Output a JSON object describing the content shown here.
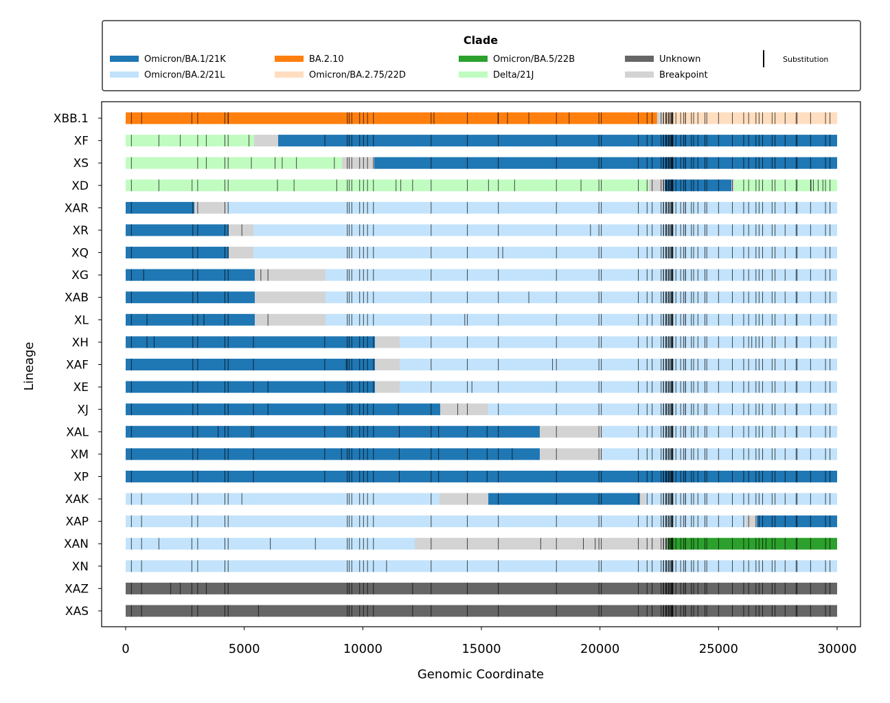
{
  "chart_data": {
    "type": "bar",
    "subtype": "horizontal-segmented",
    "xlabel": "Genomic Coordinate",
    "ylabel": "Lineage",
    "xlim": [
      -1000,
      31000
    ],
    "xticks": [
      0,
      5000,
      10000,
      15000,
      20000,
      25000,
      30000
    ],
    "grid": false,
    "legend": {
      "title": "Clade",
      "placement": "top",
      "entries": [
        {
          "name": "Omicron/BA.1/21K",
          "color": "#1f77b4"
        },
        {
          "name": "Omicron/BA.2/21L",
          "color": "#c2e3fb"
        },
        {
          "name": "BA.2.10",
          "color": "#ff7f0e"
        },
        {
          "name": "Omicron/BA.2.75/22D",
          "color": "#ffdec0"
        },
        {
          "name": "Omicron/BA.5/22B",
          "color": "#2ca02c"
        },
        {
          "name": "Delta/21J",
          "color": "#c0fcc0"
        },
        {
          "name": "Unknown",
          "color": "#666666"
        },
        {
          "name": "Breakpoint",
          "color": "#d3d3d3"
        }
      ],
      "substitution_label": "Substitution"
    },
    "common_substitutions": [
      241,
      3037,
      4184,
      4321,
      9344,
      9424,
      9534,
      9866,
      10029,
      10198,
      10447,
      12880,
      14408,
      15714,
      18163,
      19955,
      20055,
      21618,
      21987,
      22200,
      22578,
      22673,
      22686,
      22775,
      22786,
      22813,
      22882,
      22898,
      22942,
      22992,
      23013,
      23040,
      23055,
      23063,
      23075,
      23202,
      23403,
      23525,
      23599,
      23604,
      23854,
      23948,
      24130,
      24424,
      24503,
      25000,
      25584,
      26060,
      26270,
      26577,
      26709,
      26858,
      27259,
      27382,
      27807,
      28271,
      28311,
      28881,
      29510,
      29700
    ],
    "rows": [
      {
        "lineage": "XBB.1",
        "segments": [
          [
            0,
            22410,
            "BA.2.10"
          ],
          [
            22410,
            22650,
            "Breakpoint"
          ],
          [
            22650,
            30000,
            "Omicron/BA.2.75/22D"
          ]
        ],
        "extra": [
          670,
          2790,
          4321,
          13000,
          15700,
          16100,
          17000,
          18700
        ]
      },
      {
        "lineage": "XF",
        "segments": [
          [
            0,
            5415,
            "Delta/21J"
          ],
          [
            5415,
            6430,
            "Breakpoint"
          ],
          [
            6430,
            30000,
            "Omicron/BA.1/21K"
          ]
        ],
        "extra": [
          1400,
          2300,
          3400,
          5200,
          8400
        ]
      },
      {
        "lineage": "XS",
        "segments": [
          [
            0,
            9122,
            "Delta/21J"
          ],
          [
            9122,
            10484,
            "Breakpoint"
          ],
          [
            10484,
            30000,
            "Omicron/BA.1/21K"
          ]
        ],
        "extra": [
          3400,
          5300,
          6300,
          6600,
          7200,
          8800
        ]
      },
      {
        "lineage": "XD",
        "segments": [
          [
            0,
            22067,
            "Delta/21J"
          ],
          [
            22067,
            22733,
            "Breakpoint"
          ],
          [
            22733,
            25543,
            "Omicron/BA.1/21K"
          ],
          [
            25543,
            25659,
            "Breakpoint"
          ],
          [
            25659,
            30000,
            "Delta/21J"
          ]
        ],
        "extra": [
          1400,
          2800,
          6400,
          7100,
          8900,
          11400,
          11600,
          12100,
          15300,
          16400,
          19200,
          28900,
          29000,
          29200,
          29400
        ]
      },
      {
        "lineage": "XAR",
        "segments": [
          [
            0,
            2896,
            "Omicron/BA.1/21K"
          ],
          [
            2896,
            4257,
            "Breakpoint"
          ],
          [
            4257,
            30000,
            "Omicron/BA.2/21L"
          ]
        ],
        "extra": [
          2832
        ]
      },
      {
        "lineage": "XR",
        "segments": [
          [
            0,
            4344,
            "Omicron/BA.1/21K"
          ],
          [
            4344,
            5387,
            "Breakpoint"
          ],
          [
            5387,
            30000,
            "Omicron/BA.2/21L"
          ]
        ],
        "extra": [
          2832,
          4900,
          19600
        ]
      },
      {
        "lineage": "XQ",
        "segments": [
          [
            0,
            4344,
            "Omicron/BA.1/21K"
          ],
          [
            4344,
            5387,
            "Breakpoint"
          ],
          [
            5387,
            30000,
            "Omicron/BA.2/21L"
          ]
        ],
        "extra": [
          2832,
          15900
        ]
      },
      {
        "lineage": "XG",
        "segments": [
          [
            0,
            5445,
            "Omicron/BA.1/21K"
          ],
          [
            5445,
            8427,
            "Breakpoint"
          ],
          [
            8427,
            30000,
            "Omicron/BA.2/21L"
          ]
        ],
        "extra": [
          760,
          2832,
          5700,
          6000
        ]
      },
      {
        "lineage": "XAB",
        "segments": [
          [
            0,
            5445,
            "Omicron/BA.1/21K"
          ],
          [
            5445,
            8427,
            "Breakpoint"
          ],
          [
            8427,
            30000,
            "Omicron/BA.2/21L"
          ]
        ],
        "extra": [
          2832,
          17000
        ]
      },
      {
        "lineage": "XL",
        "segments": [
          [
            0,
            5445,
            "Omicron/BA.1/21K"
          ],
          [
            5445,
            8427,
            "Breakpoint"
          ],
          [
            8427,
            30000,
            "Omicron/BA.2/21L"
          ]
        ],
        "extra": [
          900,
          2832,
          3300,
          6000,
          14300
        ]
      },
      {
        "lineage": "XH",
        "segments": [
          [
            0,
            10513,
            "Omicron/BA.1/21K"
          ],
          [
            10513,
            11555,
            "Breakpoint"
          ],
          [
            11555,
            30000,
            "Omicron/BA.2/21L"
          ]
        ],
        "extra": [
          900,
          1200,
          2832,
          5386,
          8393,
          26400
        ]
      },
      {
        "lineage": "XAF",
        "segments": [
          [
            0,
            10513,
            "Omicron/BA.1/21K"
          ],
          [
            10513,
            11555,
            "Breakpoint"
          ],
          [
            11555,
            30000,
            "Omicron/BA.2/21L"
          ]
        ],
        "extra": [
          2832,
          5386,
          8393,
          9300,
          18000
        ]
      },
      {
        "lineage": "XE",
        "segments": [
          [
            0,
            10513,
            "Omicron/BA.1/21K"
          ],
          [
            10513,
            11555,
            "Breakpoint"
          ],
          [
            11555,
            30000,
            "Omicron/BA.2/21L"
          ]
        ],
        "extra": [
          2832,
          5386,
          6000,
          8393,
          14600
        ]
      },
      {
        "lineage": "XJ",
        "segments": [
          [
            0,
            13264,
            "Omicron/BA.1/21K"
          ],
          [
            13264,
            15291,
            "Breakpoint"
          ],
          [
            15291,
            30000,
            "Omicron/BA.2/21L"
          ]
        ],
        "extra": [
          2832,
          5386,
          6000,
          8393,
          11500,
          14000
        ]
      },
      {
        "lineage": "XAL",
        "segments": [
          [
            0,
            17463,
            "Omicron/BA.1/21K"
          ],
          [
            17463,
            20069,
            "Breakpoint"
          ],
          [
            20069,
            30000,
            "Omicron/BA.2/21L"
          ]
        ],
        "extra": [
          2832,
          3900,
          5300,
          5386,
          8393,
          11537,
          13195,
          15240
        ]
      },
      {
        "lineage": "XM",
        "segments": [
          [
            0,
            17463,
            "Omicron/BA.1/21K"
          ],
          [
            17463,
            20069,
            "Breakpoint"
          ],
          [
            20069,
            30000,
            "Omicron/BA.2/21L"
          ]
        ],
        "extra": [
          2832,
          5386,
          8393,
          9100,
          11537,
          13195,
          15240,
          16300
        ]
      },
      {
        "lineage": "XP",
        "segments": [
          [
            0,
            30000,
            "Omicron/BA.1/21K"
          ]
        ],
        "extra": [
          2832,
          5386,
          8393,
          11537,
          13195,
          15240
        ]
      },
      {
        "lineage": "XAK",
        "segments": [
          [
            0,
            13235,
            "Omicron/BA.2/21L"
          ],
          [
            13235,
            15291,
            "Breakpoint"
          ],
          [
            15291,
            21691,
            "Omicron/BA.1/21K"
          ],
          [
            21691,
            21922,
            "Breakpoint"
          ],
          [
            21922,
            30000,
            "Omicron/BA.2/21L"
          ]
        ],
        "extra": [
          670,
          2790,
          4900
        ]
      },
      {
        "lineage": "XAP",
        "segments": [
          [
            0,
            26151,
            "Omicron/BA.2/21L"
          ],
          [
            26151,
            26614,
            "Breakpoint"
          ],
          [
            26614,
            30000,
            "Omicron/BA.1/21K"
          ]
        ],
        "extra": [
          670,
          2790
        ]
      },
      {
        "lineage": "XAN",
        "segments": [
          [
            0,
            12192,
            "Omicron/BA.2/21L"
          ],
          [
            12192,
            22850,
            "Breakpoint"
          ],
          [
            22850,
            30000,
            "Omicron/BA.5/22B"
          ]
        ],
        "extra": [
          670,
          1400,
          2790,
          6100,
          8000,
          17500,
          19300,
          19800,
          27000
        ]
      },
      {
        "lineage": "XN",
        "segments": [
          [
            0,
            30000,
            "Omicron/BA.2/21L"
          ]
        ],
        "extra": [
          670,
          2790,
          11000
        ]
      },
      {
        "lineage": "XAZ",
        "segments": [
          [
            0,
            30000,
            "Unknown"
          ]
        ],
        "extra": [
          670,
          1900,
          2300,
          2790,
          3400,
          12100
        ]
      },
      {
        "lineage": "XAS",
        "segments": [
          [
            0,
            30000,
            "Unknown"
          ]
        ],
        "extra": [
          670,
          2790,
          5600,
          12100
        ]
      }
    ]
  }
}
